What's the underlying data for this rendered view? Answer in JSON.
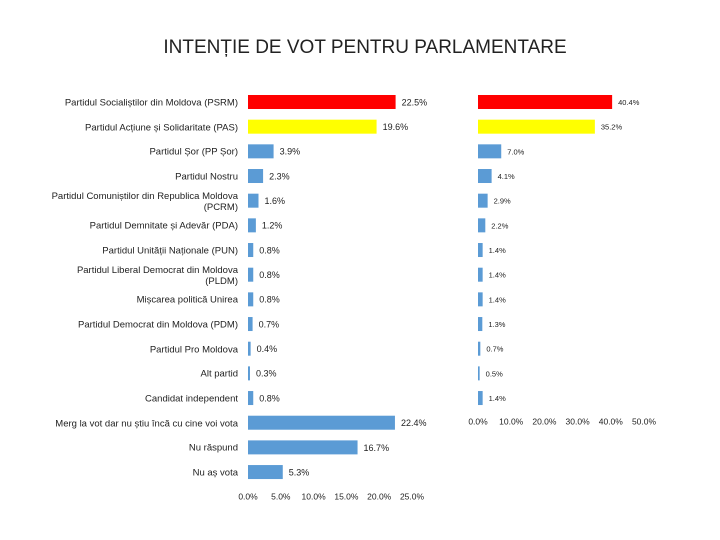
{
  "chart_data": [
    {
      "type": "bar",
      "orientation": "horizontal",
      "title": "INTENȚIE DE VOT PENTRU PARLAMENTARE",
      "categories": [
        "Partidul Socialiștilor din Moldova (PSRM)",
        "Partidul Acțiune și Solidaritate (PAS)",
        "Partidul Șor (PP Șor)",
        "Partidul Nostru",
        "Partidul Comuniștilor din Republica Moldova (PCRM)",
        "Partidul Demnitate și Adevăr (PDA)",
        "Partidul Unității Naționale (PUN)",
        "Partidul Liberal Democrat din Moldova (PLDM)",
        "Mișcarea politică Unirea",
        "Partidul Democrat din Moldova (PDM)",
        "Partidul Pro Moldova",
        "Alt partid",
        "Candidat independent",
        "Merg la vot dar nu știu încă cu cine voi vota",
        "Nu răspund",
        "Nu aș vota"
      ],
      "values": [
        22.5,
        19.6,
        3.9,
        2.3,
        1.6,
        1.2,
        0.8,
        0.8,
        0.8,
        0.7,
        0.4,
        0.3,
        0.8,
        22.4,
        16.7,
        5.3
      ],
      "value_labels": [
        "22.5%",
        "19.6%",
        "3.9%",
        "2.3%",
        "1.6%",
        "1.2%",
        "0.8%",
        "0.8%",
        "0.8%",
        "0.7%",
        "0.4%",
        "0.3%",
        "0.8%",
        "22.4%",
        "16.7%",
        "5.3%"
      ],
      "colors": [
        "#ff0000",
        "#ffff00",
        "#5b9bd5",
        "#5b9bd5",
        "#5b9bd5",
        "#5b9bd5",
        "#5b9bd5",
        "#5b9bd5",
        "#5b9bd5",
        "#5b9bd5",
        "#5b9bd5",
        "#5b9bd5",
        "#5b9bd5",
        "#5b9bd5",
        "#5b9bd5",
        "#5b9bd5"
      ],
      "xlim": [
        0,
        25
      ],
      "xticks": [
        {
          "value": 0,
          "label": "0.0%"
        },
        {
          "value": 5,
          "label": "5.0%"
        },
        {
          "value": 10,
          "label": "10.0%"
        },
        {
          "value": 15,
          "label": "15.0%"
        },
        {
          "value": 20,
          "label": "20.0%"
        },
        {
          "value": 25,
          "label": "25.0%"
        }
      ]
    },
    {
      "type": "bar",
      "orientation": "horizontal",
      "values": [
        40.4,
        35.2,
        7.0,
        4.1,
        2.9,
        2.2,
        1.4,
        1.4,
        1.4,
        1.3,
        0.7,
        0.5,
        1.4
      ],
      "value_labels": [
        "40.4%",
        "35.2%",
        "7.0%",
        "4.1%",
        "2.9%",
        "2.2%",
        "1.4%",
        "1.4%",
        "1.4%",
        "1.3%",
        "0.7%",
        "0.5%",
        "1.4%"
      ],
      "colors": [
        "#ff0000",
        "#ffff00",
        "#5b9bd5",
        "#5b9bd5",
        "#5b9bd5",
        "#5b9bd5",
        "#5b9bd5",
        "#5b9bd5",
        "#5b9bd5",
        "#5b9bd5",
        "#5b9bd5",
        "#5b9bd5",
        "#5b9bd5"
      ],
      "xlim": [
        0,
        50
      ],
      "xticks": [
        {
          "value": 0,
          "label": "0.0%"
        },
        {
          "value": 10,
          "label": "10.0%"
        },
        {
          "value": 20,
          "label": "20.0%"
        },
        {
          "value": 30,
          "label": "30.0%"
        },
        {
          "value": 40,
          "label": "40.0%"
        },
        {
          "value": 50,
          "label": "50.0%"
        }
      ]
    }
  ]
}
